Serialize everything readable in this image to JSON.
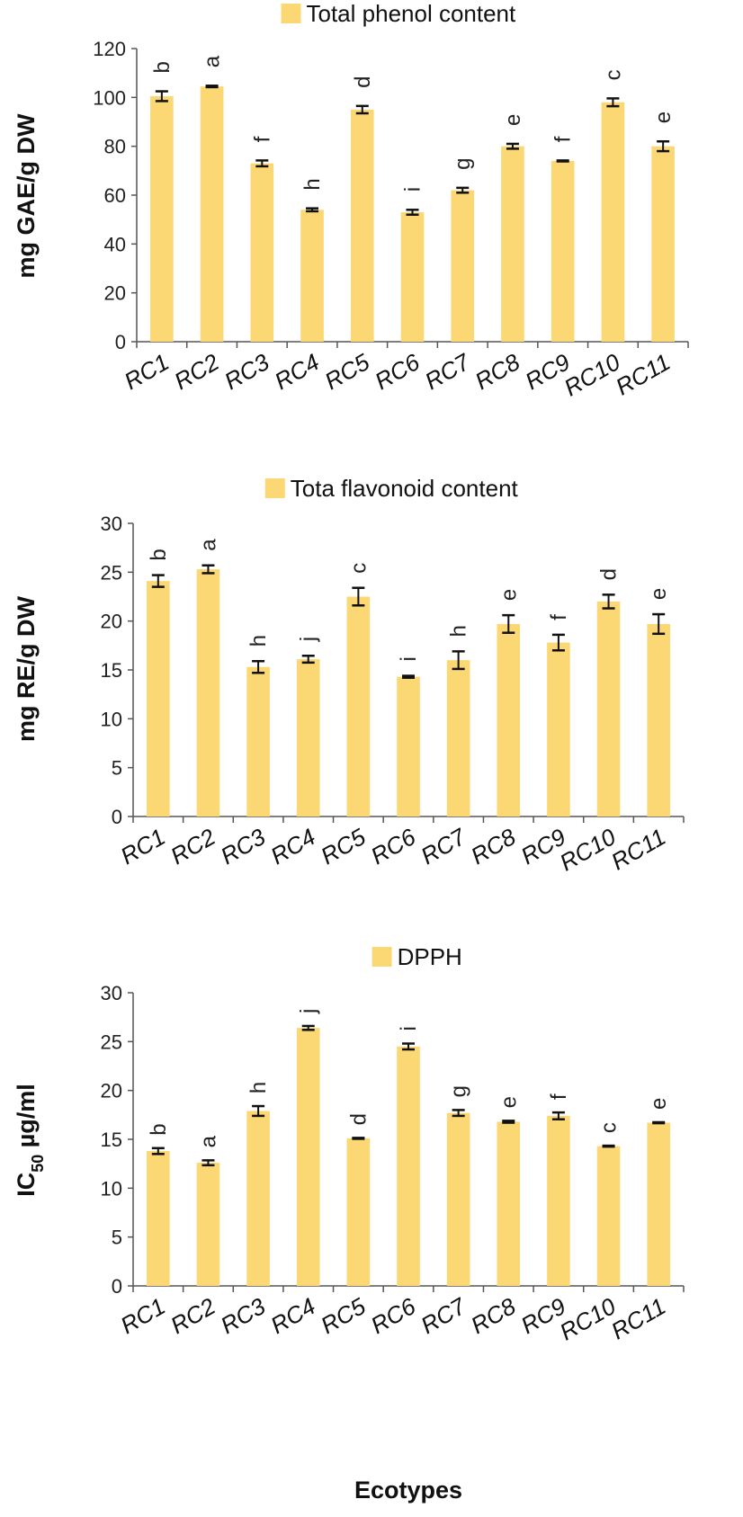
{
  "chart_data": [
    {
      "type": "bar",
      "legend": "Total phenol content",
      "ylabel": "mg GAE/g DW",
      "xlabel": "",
      "ylim": [
        0,
        120
      ],
      "yticks": [
        0,
        20,
        40,
        60,
        80,
        100,
        120
      ],
      "categories": [
        "RC1",
        "RC2",
        "RC3",
        "RC4",
        "RC5",
        "RC6",
        "RC7",
        "RC8",
        "RC9",
        "RC10",
        "RC11"
      ],
      "values": [
        100.5,
        104.5,
        73,
        54,
        95,
        53,
        62,
        80,
        74,
        98,
        80
      ],
      "errors": [
        2,
        0.3,
        1.2,
        0.6,
        1.5,
        1,
        1,
        1,
        0.2,
        1.6,
        2
      ],
      "letters": [
        "b",
        "a",
        "f",
        "h",
        "d",
        "i",
        "g",
        "e",
        "f",
        "c",
        "e"
      ]
    },
    {
      "type": "bar",
      "legend": "Tota flavonoid content",
      "ylabel": "mg RE/g DW",
      "xlabel": "",
      "ylim": [
        0,
        30
      ],
      "yticks": [
        0,
        5,
        10,
        15,
        20,
        25,
        30
      ],
      "categories": [
        "RC1",
        "RC2",
        "RC3",
        "RC4",
        "RC5",
        "RC6",
        "RC7",
        "RC8",
        "RC9",
        "RC10",
        "RC11"
      ],
      "values": [
        24.1,
        25.3,
        15.3,
        16.1,
        22.5,
        14.3,
        16,
        19.7,
        17.8,
        22,
        19.7
      ],
      "errors": [
        0.6,
        0.4,
        0.6,
        0.35,
        0.9,
        0.1,
        0.9,
        0.9,
        0.8,
        0.7,
        1
      ],
      "letters": [
        "b",
        "a",
        "h",
        "j",
        "c",
        "i",
        "h",
        "e",
        "f",
        "d",
        "e"
      ]
    },
    {
      "type": "bar",
      "legend": "DPPH",
      "ylabel": "IC50 µg/ml",
      "ylabel_parts": [
        "IC",
        "50",
        " µg/ml"
      ],
      "xlabel": "Ecotypes",
      "ylim": [
        0,
        30
      ],
      "yticks": [
        0,
        5,
        10,
        15,
        20,
        25,
        30
      ],
      "categories": [
        "RC1",
        "RC2",
        "RC3",
        "RC4",
        "RC5",
        "RC6",
        "RC7",
        "RC8",
        "RC9",
        "RC10",
        "RC11"
      ],
      "values": [
        13.8,
        12.6,
        17.9,
        26.4,
        15.1,
        24.5,
        17.7,
        16.8,
        17.4,
        14.3,
        16.7
      ],
      "errors": [
        0.3,
        0.25,
        0.5,
        0.2,
        0.05,
        0.3,
        0.3,
        0.1,
        0.35,
        0.05,
        0.05
      ],
      "letters": [
        "b",
        "a",
        "h",
        "j",
        "d",
        "i",
        "g",
        "e",
        "f",
        "c",
        "e"
      ]
    }
  ],
  "colors": {
    "bar": "#FCD874",
    "axis": "#555555",
    "error": "#111111",
    "text": "#111111"
  }
}
